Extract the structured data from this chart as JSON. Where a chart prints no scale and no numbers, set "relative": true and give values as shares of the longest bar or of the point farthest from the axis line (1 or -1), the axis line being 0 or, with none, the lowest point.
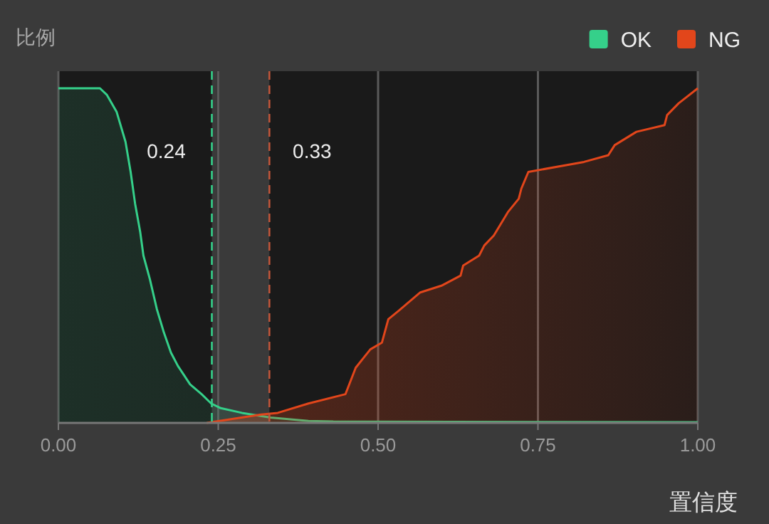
{
  "chart_data": {
    "type": "area",
    "relative": true,
    "ylabel": "比例",
    "xlabel": "置信度",
    "xlim": [
      0,
      1
    ],
    "xticks": [
      {
        "value": 0,
        "label": "0.00"
      },
      {
        "value": 0.25,
        "label": "0.25"
      },
      {
        "value": 0.5,
        "label": "0.50"
      },
      {
        "value": 0.75,
        "label": "0.75"
      },
      {
        "value": 1,
        "label": "1.00"
      }
    ],
    "grid": "x",
    "legend": "top right",
    "series": [
      {
        "name": "OK",
        "color": "#35d08a",
        "x": [
          0,
          0.065,
          0.076,
          0.091,
          0.105,
          0.113,
          0.12,
          0.128,
          0.133,
          0.143,
          0.154,
          0.165,
          0.176,
          0.187,
          0.206,
          0.224,
          0.239,
          0.254,
          0.287,
          0.332,
          0.391,
          0.43,
          1.0
        ],
        "values": [
          1.0,
          1.0,
          0.98,
          0.93,
          0.84,
          0.75,
          0.655,
          0.57,
          0.5,
          0.43,
          0.34,
          0.27,
          0.21,
          0.17,
          0.115,
          0.086,
          0.058,
          0.044,
          0.03,
          0.016,
          0.006,
          0.004,
          0.002
        ]
      },
      {
        "name": "NG",
        "color": "#e2461b",
        "x": [
          0.232,
          0.317,
          0.343,
          0.391,
          0.449,
          0.465,
          0.488,
          0.506,
          0.516,
          0.532,
          0.566,
          0.599,
          0.629,
          0.633,
          0.658,
          0.666,
          0.681,
          0.703,
          0.72,
          0.724,
          0.735,
          0.822,
          0.86,
          0.87,
          0.904,
          0.948,
          0.952,
          0.97,
          1.0
        ],
        "values": [
          0,
          0.025,
          0.03,
          0.058,
          0.086,
          0.165,
          0.22,
          0.24,
          0.31,
          0.335,
          0.39,
          0.41,
          0.44,
          0.47,
          0.5,
          0.53,
          0.56,
          0.63,
          0.67,
          0.7,
          0.75,
          0.78,
          0.8,
          0.83,
          0.87,
          0.89,
          0.92,
          0.955,
          1.0
        ]
      }
    ],
    "bands": [
      {
        "axis": "x",
        "from": 0.24,
        "to": 0.33,
        "color": "#3a3a3a"
      }
    ],
    "ref_lines": [
      {
        "axis": "x",
        "value": 0.24,
        "label": "0.24",
        "color": "#35d08a",
        "line_style": "dashed"
      },
      {
        "axis": "x",
        "value": 0.33,
        "label": "0.33",
        "color": "#c0553a",
        "line_style": "dashed"
      }
    ]
  }
}
